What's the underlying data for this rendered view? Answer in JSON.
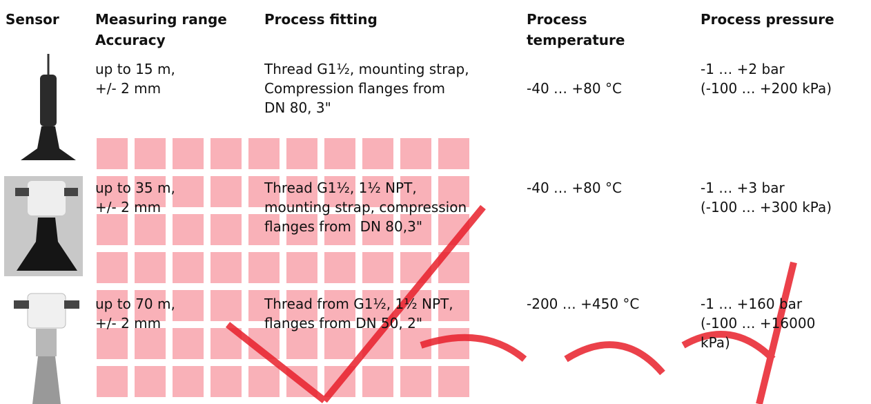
{
  "header": [
    "Sensor",
    [
      "Measuring range",
      "Accuracy"
    ],
    [
      "Process fitting"
    ],
    [
      "Process",
      "temperature"
    ],
    [
      "Process pressure"
    ]
  ],
  "rows": [
    {
      "range": [
        "up to 15 m,",
        "+/- 2 mm"
      ],
      "fitting": [
        "Thread G1½, mounting strap,",
        "Compression flanges from",
        "DN 80, 3\""
      ],
      "temperature": [
        "-40 … +80 °C"
      ],
      "pressure": [
        "-1 … +2 bar",
        "(-100 … +200 kPa)"
      ]
    },
    {
      "range": [
        "up to 35 m,",
        "+/- 2 mm"
      ],
      "fitting": [
        "Thread G1½, 1½ NPT,",
        "mounting strap, compression",
        "flanges from  DN 80,3\""
      ],
      "temperature": [
        "-40 … +80 °C"
      ],
      "pressure": [
        "-1 … +3 bar",
        "(-100 … +300 kPa)"
      ]
    },
    {
      "range": [
        "up to 70 m,",
        "+/- 2 mm"
      ],
      "fitting": [
        "Thread from G1½, 1½ NPT,",
        "flanges from DN 50, 2\""
      ],
      "temperature": [
        "-200 … +450 °C"
      ],
      "pressure": [
        "-1 … +160 bar",
        "(-100 … +16000",
        "kPa)"
      ]
    }
  ]
}
